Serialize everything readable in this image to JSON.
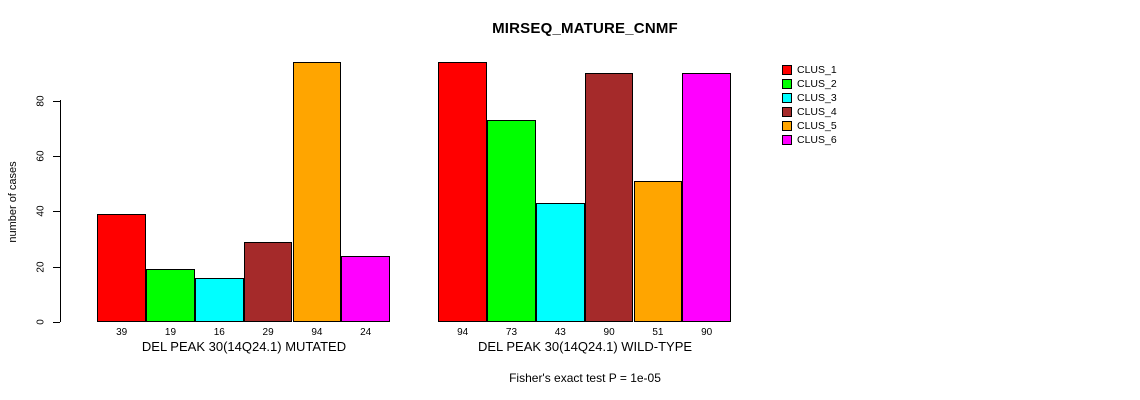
{
  "chart_data": {
    "type": "bar",
    "title": "MIRSEQ_MATURE_CNMF",
    "ylabel": "number of cases",
    "ylim": [
      0,
      94
    ],
    "yticks": [
      0,
      20,
      40,
      60,
      80
    ],
    "grid": false,
    "legend_position": "right",
    "legend": [
      "CLUS_1",
      "CLUS_2",
      "CLUS_3",
      "CLUS_4",
      "CLUS_5",
      "CLUS_6"
    ],
    "legend_colors": [
      "#ff0000",
      "#00ff00",
      "#00ffff",
      "#a52a2a",
      "#ffa500",
      "#ff00ff"
    ],
    "groups": [
      {
        "label": "DEL PEAK 30(14Q24.1) MUTATED",
        "values": [
          39,
          19,
          16,
          29,
          94,
          24
        ]
      },
      {
        "label": "DEL PEAK 30(14Q24.1) WILD-TYPE",
        "values": [
          94,
          73,
          43,
          90,
          51,
          90
        ]
      }
    ],
    "annotation": "Fisher's exact test P = 1e-05"
  }
}
